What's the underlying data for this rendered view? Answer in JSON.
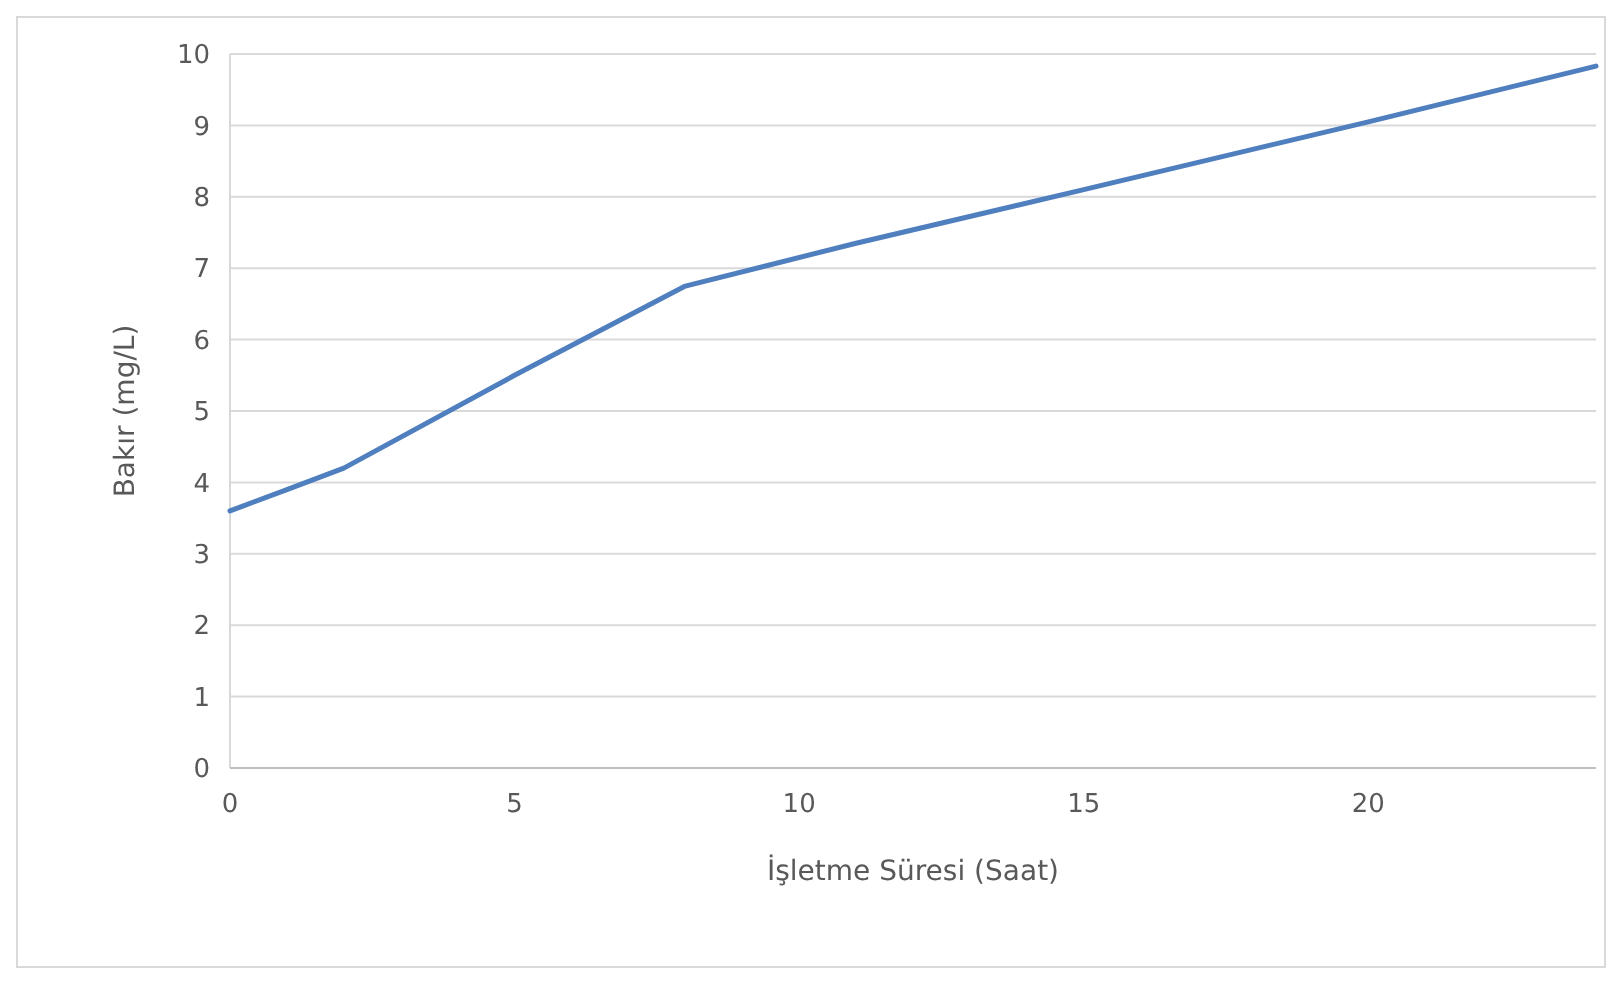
{
  "chart_data": {
    "type": "line",
    "xlabel": "İşletme Süresi (Saat)",
    "ylabel": "Bakır (mg/L)",
    "x": [
      0,
      1,
      2,
      5,
      8,
      11,
      15,
      20,
      24
    ],
    "series": [
      {
        "color": "#4f7fbe",
        "values": [
          3.6,
          3.9,
          4.2,
          5.5,
          6.75,
          7.35,
          8.1,
          9.05,
          9.83
        ]
      }
    ],
    "xlim": [
      0,
      24
    ],
    "xticks": [
      0,
      5,
      10,
      15,
      20
    ],
    "ylim": [
      0,
      10
    ],
    "yticks": [
      0,
      1,
      2,
      3,
      4,
      5,
      6,
      7,
      8,
      9,
      10
    ],
    "grid": "y",
    "marker": "none",
    "line_style": "solid"
  }
}
